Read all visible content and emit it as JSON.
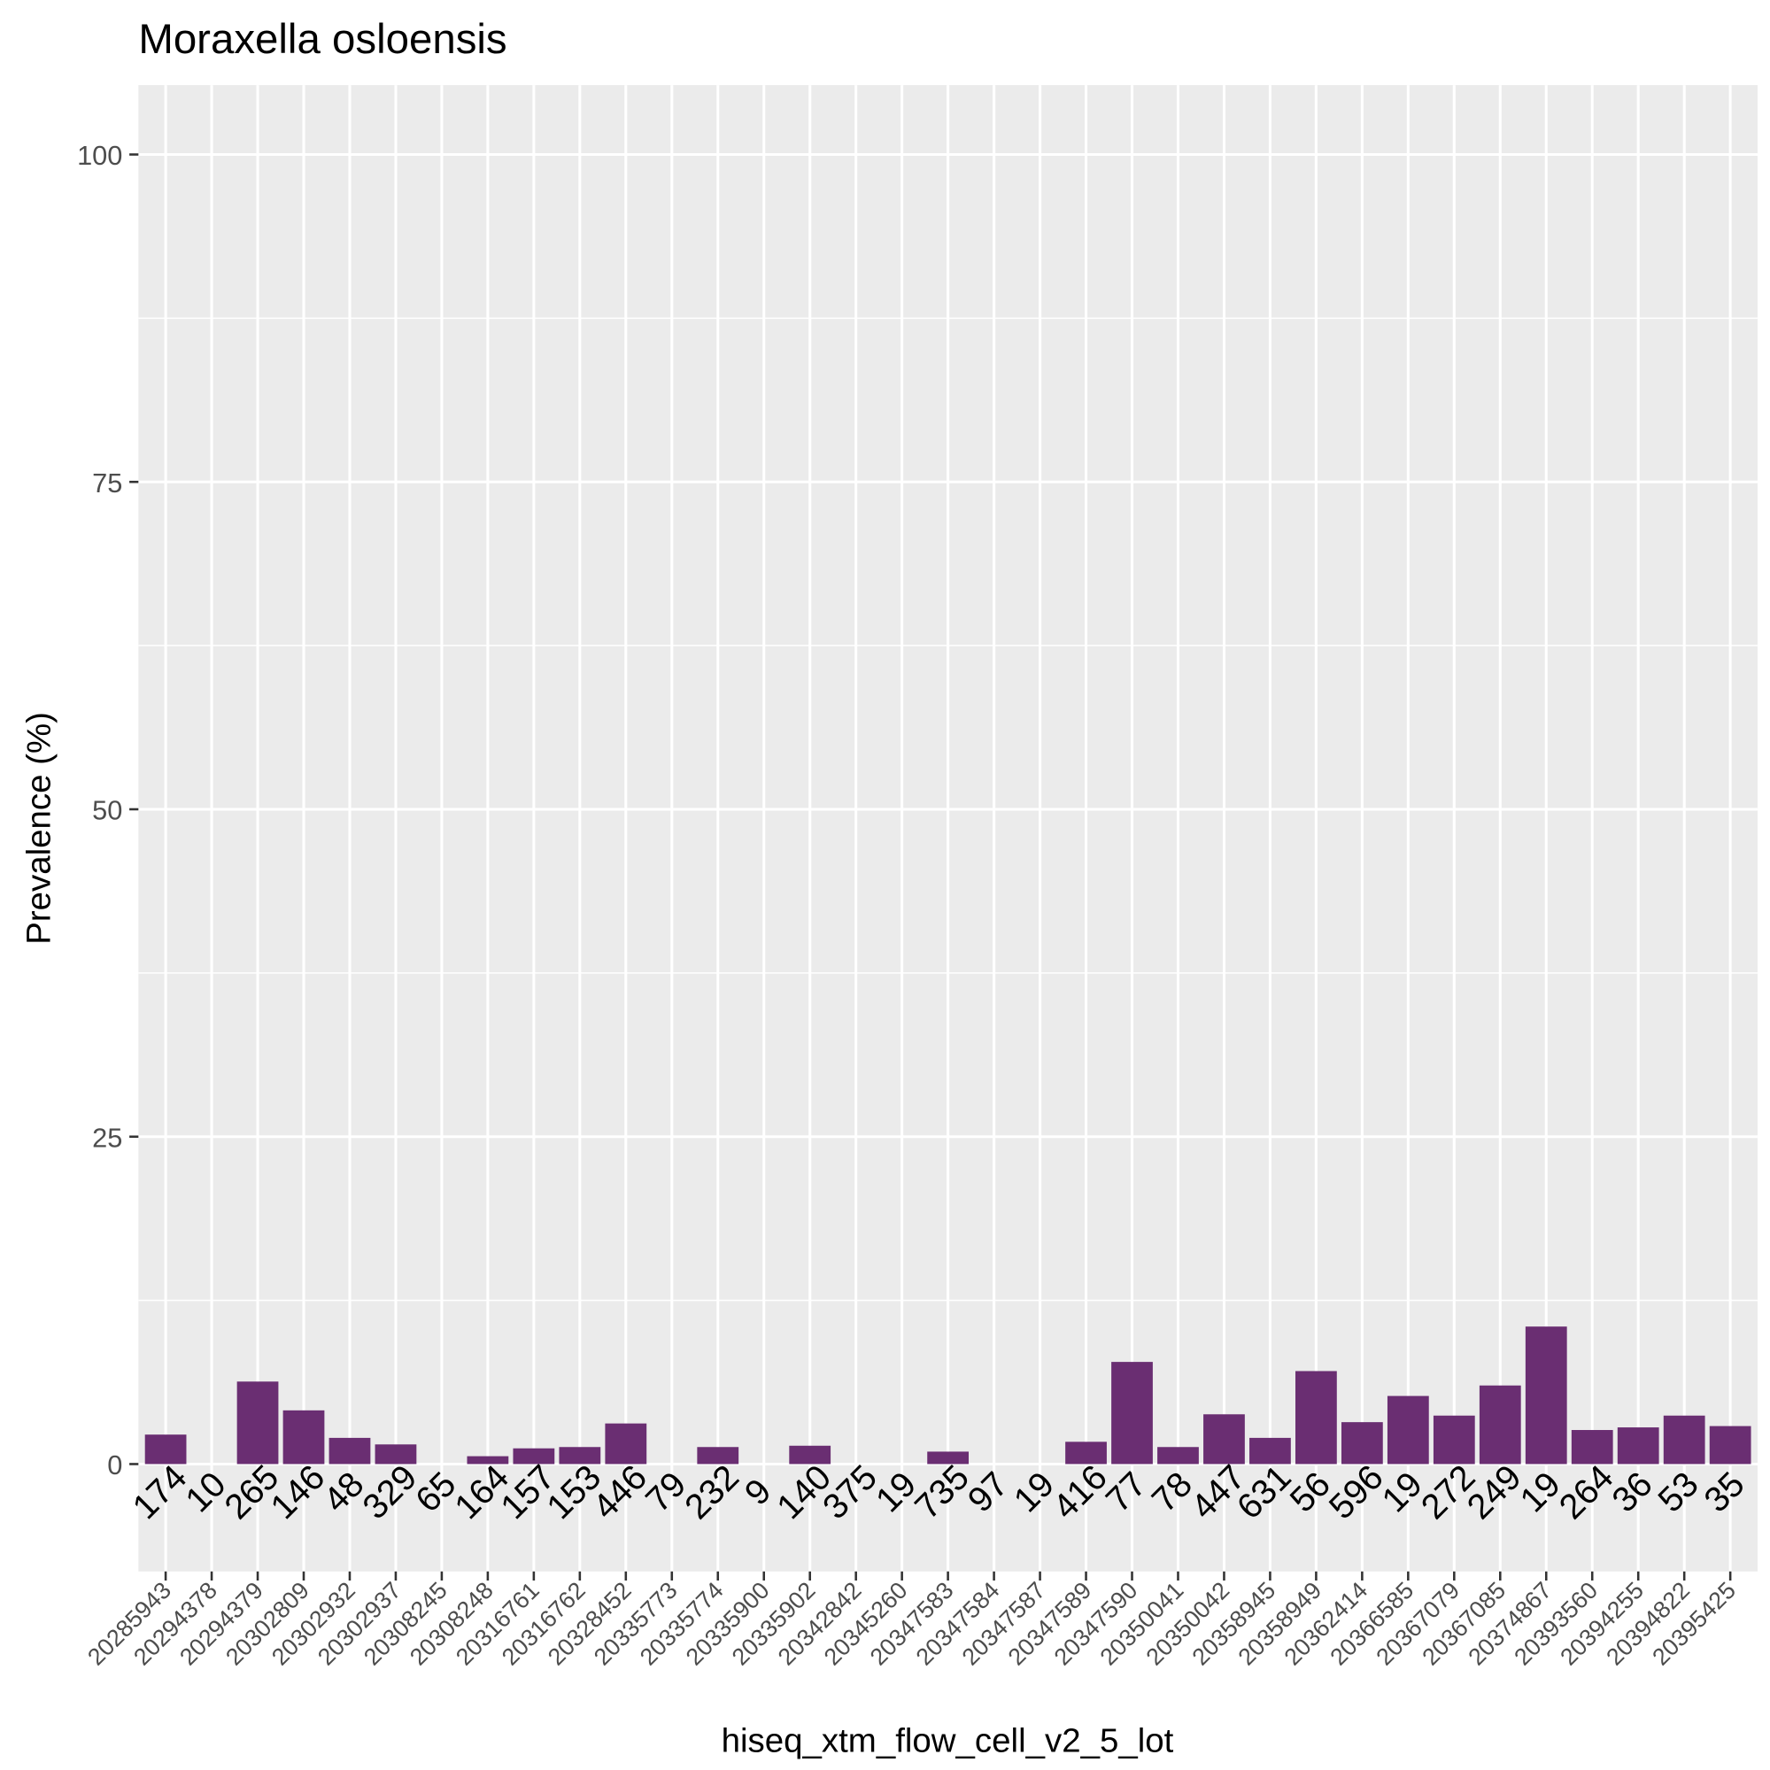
{
  "chart_data": {
    "type": "bar",
    "title": "Moraxella osloensis",
    "x_label": "hiseq_xtm_flow_cell_v2_5_lot",
    "y_label": "Prevalence (%)",
    "categories": [
      "20285943",
      "20294378",
      "20294379",
      "20302809",
      "20302932",
      "20302937",
      "20308245",
      "20308248",
      "20316761",
      "20316762",
      "20328452",
      "20335773",
      "20335774",
      "20335900",
      "20335902",
      "20342842",
      "20345260",
      "20347583",
      "20347584",
      "20347587",
      "20347589",
      "20347590",
      "20350041",
      "20350042",
      "20358945",
      "20358949",
      "20362414",
      "20366585",
      "20367079",
      "20367085",
      "20374867",
      "20393560",
      "20394255",
      "20394822",
      "20395425"
    ],
    "values": [
      2.25,
      0,
      6.3,
      4.1,
      2.0,
      1.5,
      0,
      0.6,
      1.2,
      1.3,
      3.1,
      0,
      1.3,
      0,
      1.4,
      0,
      0,
      0.95,
      0,
      0,
      1.7,
      7.8,
      1.3,
      3.8,
      2.0,
      7.1,
      3.2,
      5.2,
      3.7,
      6.0,
      10.5,
      2.6,
      2.8,
      3.7,
      2.9
    ],
    "bar_labels": [
      174,
      10,
      265,
      146,
      48,
      329,
      65,
      164,
      157,
      153,
      446,
      79,
      232,
      9,
      140,
      375,
      19,
      735,
      97,
      19,
      416,
      77,
      78,
      447,
      631,
      56,
      596,
      19,
      272,
      249,
      19,
      264,
      36,
      53,
      35
    ],
    "color": "#6a2e72",
    "ylim": [
      -8.2,
      105.3
    ],
    "yticks": [
      0,
      25,
      50,
      75,
      100
    ],
    "grid": true
  }
}
